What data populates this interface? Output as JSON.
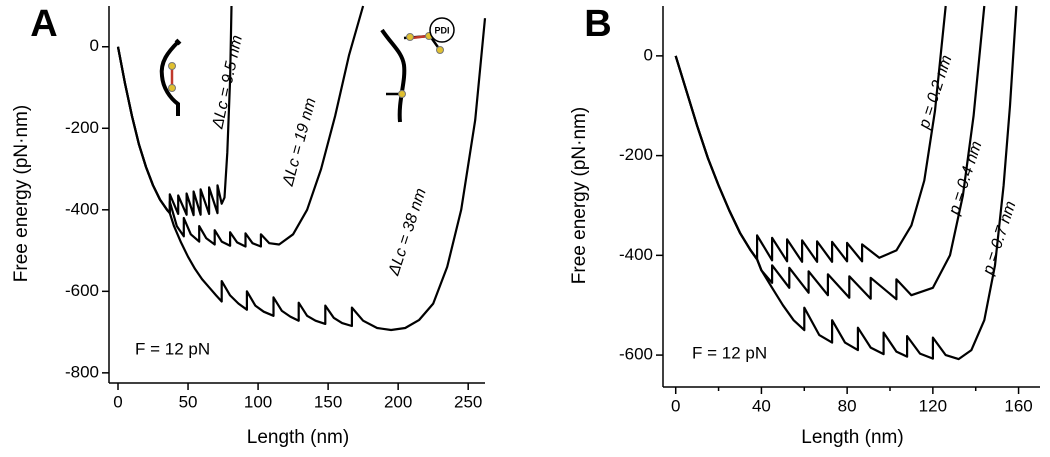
{
  "chart_data": [
    {
      "type": "line",
      "panel_label": "A",
      "ylabel": "Free energy (pN·nm)",
      "xlabel": "Length (nm)",
      "annotation": "F = 12 pN",
      "inset_label": "PDI",
      "xlim": [
        -5,
        262
      ],
      "ylim": [
        -820,
        100
      ],
      "xticks": [
        0,
        50,
        100,
        150,
        200,
        250
      ],
      "yticks": [
        0,
        -200,
        -400,
        -600,
        -800
      ],
      "grid": false,
      "series": [
        {
          "name": "ΔLc = 9.5 nm",
          "color": "#000000",
          "x": [
            0,
            5,
            10,
            15,
            20,
            25,
            30,
            35,
            37,
            37,
            43,
            43,
            49,
            49,
            54,
            54,
            59,
            59,
            65,
            65,
            71,
            71,
            74,
            76,
            78,
            80,
            81
          ],
          "values": [
            0,
            -90,
            -170,
            -240,
            -295,
            -340,
            -375,
            -400,
            -408,
            -362,
            -410,
            -365,
            -412,
            -360,
            -413,
            -355,
            -412,
            -350,
            -410,
            -345,
            -408,
            -340,
            -385,
            -370,
            -260,
            -80,
            100
          ]
        },
        {
          "name": "ΔLc = 19 nm",
          "color": "#000000",
          "x": [
            0,
            5,
            10,
            15,
            20,
            25,
            30,
            35,
            37,
            37,
            42,
            47,
            47,
            52,
            58,
            58,
            63,
            69,
            69,
            74,
            80,
            80,
            85,
            91,
            91,
            96,
            102,
            102,
            108,
            115,
            125,
            135,
            145,
            155,
            165,
            175
          ],
          "values": [
            0,
            -90,
            -170,
            -240,
            -295,
            -340,
            -375,
            -400,
            -408,
            -380,
            -440,
            -465,
            -420,
            -460,
            -478,
            -440,
            -470,
            -485,
            -450,
            -478,
            -488,
            -455,
            -480,
            -490,
            -458,
            -482,
            -490,
            -460,
            -482,
            -485,
            -460,
            -400,
            -300,
            -170,
            -20,
            100
          ]
        },
        {
          "name": "ΔLc = 38 nm",
          "color": "#000000",
          "x": [
            0,
            5,
            10,
            15,
            20,
            25,
            30,
            35,
            37,
            40,
            45,
            50,
            55,
            60,
            65,
            70,
            74,
            74,
            80,
            86,
            92,
            92,
            98,
            104,
            111,
            111,
            117,
            123,
            129,
            129,
            135,
            141,
            148,
            148,
            154,
            160,
            167,
            167,
            175,
            185,
            195,
            205,
            215,
            225,
            235,
            245,
            255,
            262
          ],
          "values": [
            0,
            -90,
            -170,
            -240,
            -295,
            -340,
            -375,
            -400,
            -408,
            -440,
            -480,
            -515,
            -545,
            -570,
            -590,
            -610,
            -625,
            -575,
            -610,
            -630,
            -645,
            -600,
            -635,
            -650,
            -660,
            -615,
            -648,
            -662,
            -672,
            -628,
            -660,
            -672,
            -680,
            -635,
            -665,
            -678,
            -685,
            -640,
            -672,
            -690,
            -695,
            -690,
            -670,
            -630,
            -540,
            -400,
            -180,
            70
          ]
        }
      ]
    },
    {
      "type": "line",
      "panel_label": "B",
      "ylabel": "Free energy (pN·nm)",
      "xlabel": "Length (nm)",
      "annotation": "F = 12 pN",
      "xlim": [
        -5,
        170
      ],
      "ylim": [
        -660,
        100
      ],
      "xticks": [
        0,
        40,
        80,
        120,
        160
      ],
      "xminor_ticks": [
        20,
        60,
        100,
        140
      ],
      "yticks": [
        0,
        -200,
        -400,
        -600
      ],
      "grid": false,
      "series": [
        {
          "name": "p = 0.2 nm",
          "color": "#000000",
          "x": [
            0,
            5,
            10,
            15,
            20,
            25,
            30,
            35,
            38,
            38,
            45,
            45,
            52,
            52,
            59,
            59,
            66,
            66,
            73,
            73,
            80,
            80,
            87,
            87,
            95,
            103,
            110,
            116,
            121,
            126
          ],
          "values": [
            0,
            -70,
            -140,
            -205,
            -260,
            -310,
            -355,
            -390,
            -408,
            -360,
            -410,
            -365,
            -412,
            -368,
            -413,
            -370,
            -413,
            -372,
            -413,
            -373,
            -412,
            -375,
            -412,
            -378,
            -405,
            -390,
            -340,
            -250,
            -110,
            100
          ]
        },
        {
          "name": "p = 0.4 nm",
          "color": "#000000",
          "x": [
            0,
            5,
            10,
            15,
            20,
            25,
            30,
            35,
            38,
            40,
            45,
            45,
            53,
            53,
            62,
            62,
            71,
            71,
            81,
            81,
            91,
            91,
            103,
            103,
            110,
            120,
            128,
            134,
            139,
            144
          ],
          "values": [
            0,
            -70,
            -140,
            -205,
            -260,
            -310,
            -355,
            -390,
            -408,
            -430,
            -455,
            -420,
            -465,
            -425,
            -475,
            -432,
            -480,
            -438,
            -485,
            -442,
            -487,
            -445,
            -488,
            -448,
            -480,
            -465,
            -400,
            -280,
            -120,
            100
          ]
        },
        {
          "name": "p = 0.7 nm",
          "color": "#000000",
          "x": [
            0,
            5,
            10,
            15,
            20,
            25,
            30,
            35,
            38,
            40,
            45,
            50,
            55,
            60,
            60,
            67,
            73,
            73,
            79,
            85,
            85,
            91,
            97,
            97,
            103,
            108,
            108,
            114,
            120,
            120,
            126,
            132,
            138,
            144,
            149,
            153,
            156,
            159
          ],
          "values": [
            0,
            -70,
            -140,
            -205,
            -260,
            -310,
            -355,
            -390,
            -408,
            -430,
            -465,
            -500,
            -530,
            -550,
            -505,
            -560,
            -575,
            -530,
            -575,
            -590,
            -545,
            -585,
            -598,
            -555,
            -593,
            -603,
            -562,
            -597,
            -607,
            -565,
            -600,
            -608,
            -590,
            -530,
            -420,
            -260,
            -100,
            100
          ]
        }
      ]
    }
  ]
}
